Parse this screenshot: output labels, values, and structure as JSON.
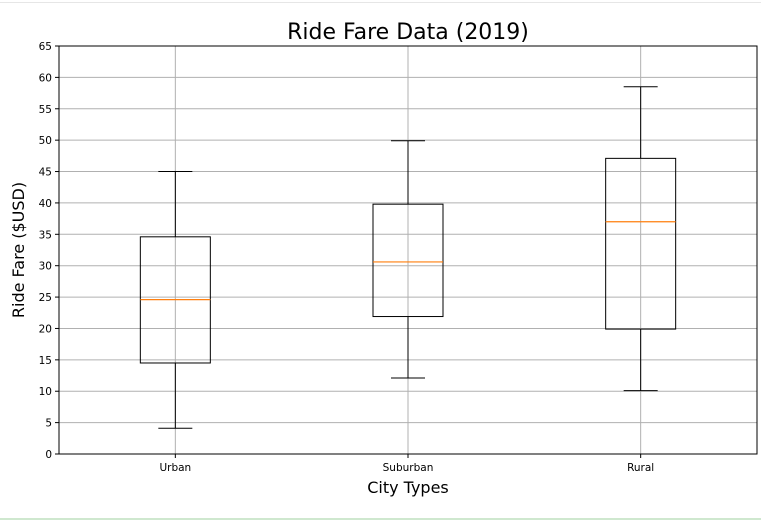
{
  "chart_data": {
    "type": "boxplot",
    "title": "Ride Fare Data (2019)",
    "xlabel": "City Types",
    "ylabel": "Ride Fare ($USD)",
    "categories": [
      "Urban",
      "Suburban",
      "Rural"
    ],
    "boxes": [
      {
        "name": "Urban",
        "whisker_low": 4.1,
        "q1": 14.5,
        "median": 24.6,
        "q3": 34.6,
        "whisker_high": 45.0
      },
      {
        "name": "Suburban",
        "whisker_low": 12.1,
        "q1": 21.9,
        "median": 30.6,
        "q3": 39.8,
        "whisker_high": 49.9
      },
      {
        "name": "Rural",
        "whisker_low": 10.1,
        "q1": 19.9,
        "median": 37.0,
        "q3": 47.1,
        "whisker_high": 58.5
      }
    ],
    "ylim": [
      0,
      65
    ],
    "yticks": [
      0,
      5,
      10,
      15,
      20,
      25,
      30,
      35,
      40,
      45,
      50,
      55,
      60,
      65
    ],
    "grid": true,
    "colors": {
      "box": "#000000",
      "median": "#ff7f0e",
      "grid": "#b0b0b0"
    }
  }
}
